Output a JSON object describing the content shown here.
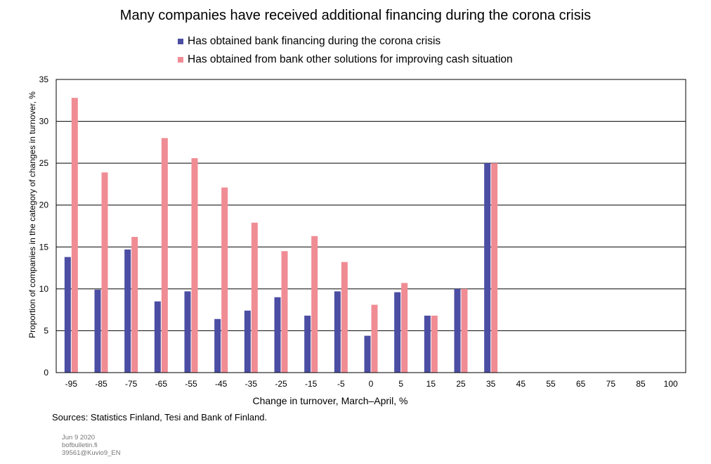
{
  "chart_data": {
    "type": "bar",
    "title": "Many companies have received additional financing during the corona crisis",
    "xlabel": "Change  in turnover, March–April,  %",
    "ylabel": "Proportion of companies in the category of changes in turnover,  %",
    "categories": [
      "-95",
      "-85",
      "-75",
      "-65",
      "-55",
      "-45",
      "-35",
      "-25",
      "-15",
      "-5",
      "0",
      "5",
      "15",
      "25",
      "35",
      "45",
      "55",
      "65",
      "75",
      "85",
      "100"
    ],
    "series": [
      {
        "name": "Has obtained bank financing during the corona crisis",
        "color": "#4b4ea3",
        "values": [
          13.8,
          9.9,
          14.7,
          8.5,
          9.7,
          6.4,
          7.4,
          9.0,
          6.8,
          9.7,
          4.4,
          9.6,
          6.8,
          10.0,
          25.0,
          null,
          null,
          null,
          null,
          null,
          null
        ]
      },
      {
        "name": "Has obtained from bank other solutions for improving cash situation",
        "color": "#f08c94",
        "values": [
          32.8,
          23.9,
          16.2,
          28.0,
          25.6,
          22.1,
          17.9,
          14.5,
          16.3,
          13.2,
          8.1,
          10.7,
          6.8,
          10.0,
          25.0,
          null,
          null,
          null,
          null,
          null,
          null
        ]
      }
    ],
    "yticks": [
      "0",
      "5",
      "10",
      "15",
      "20",
      "25",
      "30",
      "35"
    ],
    "ylim": [
      0,
      35
    ],
    "grid": true,
    "legend_position": "top"
  },
  "footer": {
    "sources": "Sources: Statistics Finland, Tesi and Bank of Finland.",
    "date": "Jun 9 2020",
    "site": "bofbulletin.fi",
    "code": "39561@Kuvio9_EN"
  }
}
